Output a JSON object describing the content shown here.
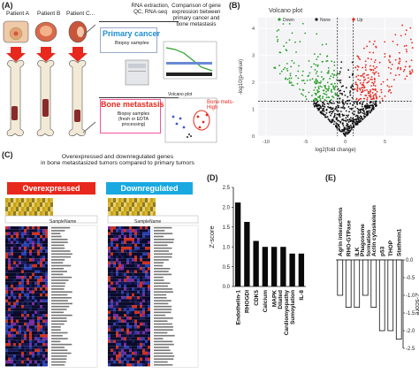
{
  "panelA": {
    "label": "(A)",
    "patients": [
      "Patient A",
      "Patient B",
      "Patient C..."
    ],
    "rna_text": "RNA extraction,\nQC, RNA-seq",
    "compare_text": "Comparison of gene\nexpression between\nprimary cancer and\nbone metastasis",
    "primary_title": "Primary cancer",
    "primary_sub": "Biopsy samples",
    "bone_title": "Bone metastasis",
    "bone_sub": "Biopsy samples\n(fresh or EDTA processing)",
    "bone_high": "Bone mets-\nHigh",
    "volcano_mini_title": "Volcano plot"
  },
  "panelB": {
    "label": "(B)",
    "chart_data": {
      "type": "scatter",
      "title": "Volcano plot",
      "legend": [
        "Down",
        "None",
        "Up"
      ],
      "legend_colors": [
        "#2aa02a",
        "#111111",
        "#e8281c"
      ],
      "xlabel": "log2(fold change)",
      "ylabel": "-log10(p-value)",
      "xticks": [
        -10,
        -5,
        0,
        5
      ],
      "yticks": [
        0,
        1,
        2,
        3,
        4
      ],
      "xlim": [
        -11,
        8.5
      ],
      "ylim": [
        0,
        4.4
      ],
      "thresholds": {
        "x": [
          -1,
          1
        ],
        "y": 1.3
      }
    }
  },
  "panelC": {
    "label": "(C)",
    "title": "Overexpressed and downregulated genes\nin bone metastasized tumors compared to primary tumors",
    "over_label": "Overexpressed",
    "down_label": "Downregulated",
    "sample_header": "SampleName"
  },
  "panelD": {
    "label": "(D)",
    "chart_data": {
      "type": "bar",
      "categories": [
        "Endothelin-1",
        "RHOGDI",
        "CDK5",
        "Calcium",
        "MAPK",
        "Dilated Cardiomyopathy",
        "Sumoylation",
        "IL-8"
      ],
      "category_lines": [
        [
          "Endothelin-1"
        ],
        [
          "RHOGDI"
        ],
        [
          "CDK5"
        ],
        [
          "Calcium"
        ],
        [
          "MAPK"
        ],
        [
          "Dilated",
          "Cardiomyopathy"
        ],
        [
          "Sumoylation"
        ],
        [
          "IL-8"
        ]
      ],
      "values": [
        2.12,
        1.63,
        1.15,
        1.0,
        1.0,
        1.0,
        0.83,
        0.83
      ],
      "ylabel": "Z-score",
      "yticks": [
        0,
        0.5,
        1.0,
        1.5,
        2.0,
        2.5
      ],
      "ylim": [
        0,
        2.5
      ]
    }
  },
  "panelE": {
    "label": "(E)",
    "chart_data": {
      "type": "bar",
      "categories": [
        "Agrin interactions",
        "RHO-GTPase",
        "ILK",
        "Phagosome formation",
        "Actin cytoskeleton",
        "p53",
        "THOP",
        "Stathmin1"
      ],
      "category_lines": [
        [
          "Agrin interactions"
        ],
        [
          "RHO-GTPase"
        ],
        [
          "ILK"
        ],
        [
          "Phagosome",
          "formation"
        ],
        [
          "Actin cytoskeleton"
        ],
        [
          "p53"
        ],
        [
          "THOP"
        ],
        [
          "Stathmin1"
        ]
      ],
      "values": [
        -1.0,
        -1.34,
        -1.34,
        -1.0,
        -1.34,
        -2.0,
        -2.0,
        -2.24
      ],
      "ylabel": "Z-score",
      "yticks": [
        0,
        -0.5,
        -1.0,
        -1.5,
        -2.0,
        -2.5
      ],
      "ylim": [
        -2.5,
        0
      ]
    }
  }
}
